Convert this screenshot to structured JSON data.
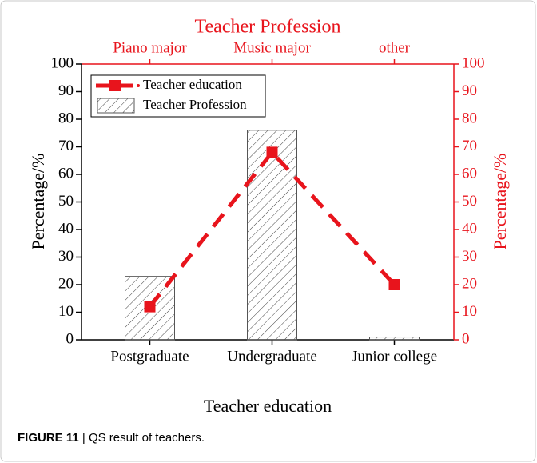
{
  "chart_data": {
    "type": "bar",
    "title": "Teacher Profession",
    "categories": [
      "Postgraduate",
      "Undergraduate",
      "Junior college"
    ],
    "top_categories": [
      "Piano major",
      "Music major",
      "other"
    ],
    "x_label": "Teacher education",
    "y_label": "Percentage/%",
    "y2_label": "Percentage/%",
    "ylim": [
      0,
      100
    ],
    "yticks": [
      0,
      10,
      20,
      30,
      40,
      50,
      60,
      70,
      80,
      90,
      100
    ],
    "y2lim": [
      0,
      100
    ],
    "y2ticks": [
      0,
      10,
      20,
      30,
      40,
      50,
      60,
      70,
      80,
      90,
      100
    ],
    "series": [
      {
        "name": "Teacher education",
        "type": "line",
        "axis": "y2",
        "color": "#e8141c",
        "values": [
          12,
          68,
          20
        ]
      },
      {
        "name": "Teacher Profession",
        "type": "bar",
        "color": "#555555",
        "values": [
          23,
          76,
          1
        ]
      }
    ]
  },
  "caption": {
    "label": "FIGURE 11",
    "text": "| QS result of teachers."
  }
}
